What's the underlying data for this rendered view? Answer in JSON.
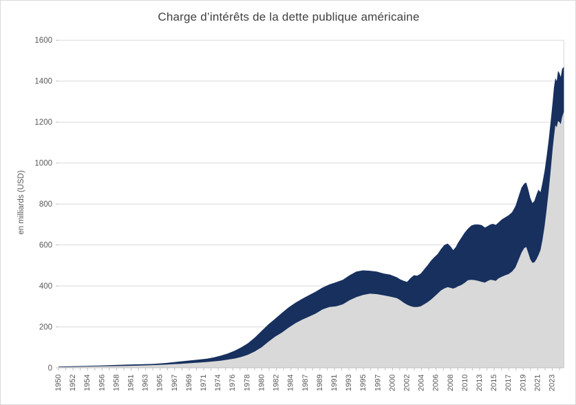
{
  "window": {
    "background_color": "#ffffff",
    "frame_border_color": "#d9d9d9"
  },
  "chart_data": {
    "type": "area",
    "title": "Charge d’intérêts de la dette publique américaine",
    "xlabel": "",
    "ylabel": "en milliards (USD)",
    "ylim": [
      0,
      1600
    ],
    "y_tick_step": 200,
    "y_tick_labels": [
      "0",
      "200",
      "400",
      "600",
      "800",
      "1000",
      "1200",
      "1400",
      "1600"
    ],
    "x_tick_labels": [
      "1950",
      "1952",
      "1954",
      "1956",
      "1958",
      "1961",
      "1963",
      "1965",
      "1967",
      "1969",
      "1971",
      "1974",
      "1976",
      "1978",
      "1980",
      "1982",
      "1984",
      "1987",
      "1989",
      "1991",
      "1993",
      "1995",
      "1997",
      "2000",
      "2002",
      "2004",
      "2006",
      "2008",
      "2010",
      "2013",
      "2015",
      "2017",
      "2019",
      "2021",
      "2023"
    ],
    "x_range": [
      1950,
      2024.66
    ],
    "grid": "horizontal",
    "legend_position": "none",
    "colors": {
      "dark_area": "#17305e",
      "light_area": "#d9d9d9",
      "gridline": "#d9d9d9",
      "axis_line": "#bfbfbf",
      "tick_text": "#595959",
      "title_text": "#404040"
    },
    "x": [
      1950,
      1952,
      1954,
      1956,
      1958,
      1960,
      1962,
      1964,
      1966,
      1968,
      1970,
      1971,
      1972,
      1973,
      1974,
      1975,
      1976,
      1977,
      1978,
      1979,
      1980,
      1981,
      1982,
      1983,
      1984,
      1985,
      1986,
      1987,
      1988,
      1989,
      1990,
      1991,
      1992,
      1993,
      1994,
      1995,
      1996,
      1997,
      1998,
      1999,
      2000,
      2000.5,
      2001,
      2001.5,
      2002,
      2002.5,
      2003,
      2003.5,
      2004,
      2004.5,
      2005,
      2005.5,
      2006,
      2006.5,
      2007,
      2007.5,
      2008,
      2008.3,
      2008.7,
      2009,
      2009.5,
      2010,
      2010.5,
      2011,
      2011.5,
      2012,
      2012.5,
      2013,
      2013.4,
      2013.8,
      2014.2,
      2014.6,
      2015,
      2015.5,
      2016,
      2016.5,
      2017,
      2017.5,
      2018,
      2018.4,
      2018.8,
      2019.1,
      2019.4,
      2019.7,
      2020,
      2020.3,
      2020.6,
      2020.9,
      2021.2,
      2021.5,
      2021.8,
      2022.1,
      2022.4,
      2022.7,
      2023,
      2023.2,
      2023.4,
      2023.6,
      2023.8,
      2024,
      2024.2,
      2024.4,
      2024.66
    ],
    "series": [
      {
        "key": "dark_navy_area",
        "values": [
          6,
          7.5,
          9.5,
          11,
          13.5,
          15.5,
          17,
          19,
          24,
          31,
          38,
          41,
          45,
          51,
          60,
          70,
          83,
          100,
          120,
          148,
          180,
          212,
          240,
          268,
          295,
          318,
          337,
          355,
          372,
          392,
          407,
          418,
          430,
          452,
          470,
          476,
          474,
          470,
          461,
          455,
          442,
          432,
          425,
          420,
          438,
          452,
          450,
          460,
          480,
          500,
          522,
          540,
          555,
          580,
          600,
          607,
          590,
          575,
          590,
          610,
          635,
          660,
          680,
          695,
          700,
          700,
          697,
          685,
          692,
          700,
          703,
          698,
          710,
          725,
          735,
          745,
          760,
          790,
          840,
          880,
          900,
          905,
          870,
          830,
          805,
          815,
          845,
          870,
          858,
          905,
          960,
          1030,
          1110,
          1200,
          1300,
          1370,
          1415,
          1400,
          1450,
          1440,
          1420,
          1460,
          1470
        ]
      },
      {
        "key": "light_gray_area",
        "values": [
          3.5,
          4.5,
          6,
          7,
          8.5,
          9.5,
          11,
          13,
          16,
          19.5,
          24,
          26,
          28.5,
          31.5,
          35,
          40,
          45,
          53,
          64,
          80,
          100,
          127,
          152,
          172,
          196,
          218,
          235,
          250,
          265,
          285,
          297,
          300,
          310,
          330,
          345,
          356,
          362,
          360,
          354,
          348,
          340,
          330,
          318,
          308,
          301,
          297,
          297,
          300,
          310,
          320,
          332,
          347,
          362,
          378,
          388,
          394,
          390,
          387,
          392,
          398,
          404,
          415,
          428,
          430,
          428,
          425,
          420,
          416,
          424,
          430,
          428,
          425,
          437,
          445,
          452,
          458,
          470,
          490,
          530,
          562,
          585,
          590,
          560,
          530,
          513,
          515,
          530,
          550,
          575,
          625,
          690,
          770,
          860,
          960,
          1070,
          1130,
          1185,
          1175,
          1205,
          1200,
          1190,
          1225,
          1250
        ]
      }
    ]
  }
}
